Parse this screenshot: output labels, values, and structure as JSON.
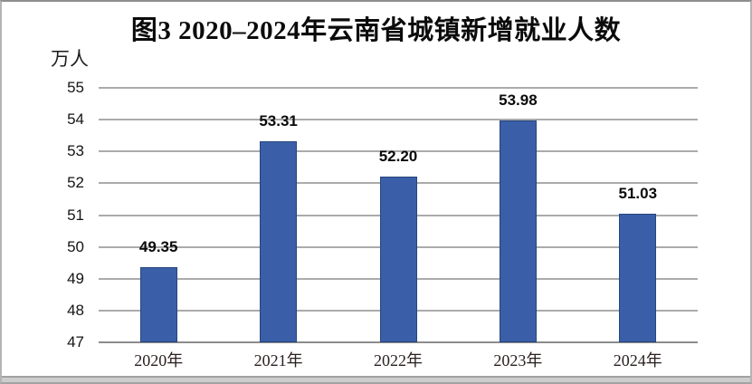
{
  "chart": {
    "title": "图3 2020–2024年云南省城镇新增就业人数",
    "unit_label": "万人"
  },
  "chart_data": {
    "type": "bar",
    "title": "图3 2020–2024年云南省城镇新增就业人数",
    "categories": [
      "2020年",
      "2021年",
      "2022年",
      "2023年",
      "2024年"
    ],
    "values": [
      49.35,
      53.31,
      52.2,
      53.98,
      51.03
    ],
    "data_labels": [
      "49.35",
      "53.31",
      "52.20",
      "53.98",
      "51.03"
    ],
    "xlabel": "",
    "ylabel": "万人",
    "ylim": [
      47,
      55
    ],
    "yticks": [
      55,
      54,
      53,
      52,
      51,
      50,
      49,
      48,
      47
    ],
    "grid": true,
    "legend": false,
    "bar_color": "#3a5fa8",
    "bar_border_color": "#27457e",
    "gridline_color": "#ababab",
    "axis_color": "#8c8c8c",
    "label_color": "#0a0a0a"
  }
}
